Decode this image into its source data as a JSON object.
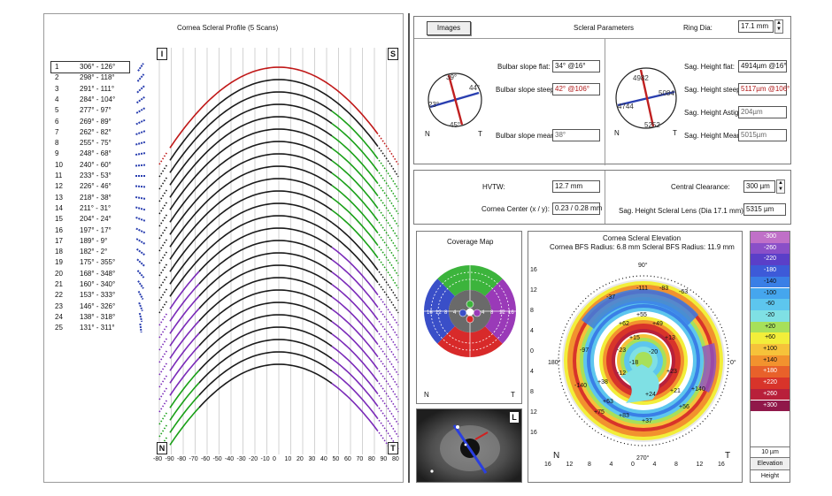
{
  "profile": {
    "title": "Cornea Scleral Profile (5 Scans)",
    "corner_top_left": "I",
    "corner_top_right": "S",
    "corner_bottom_left": "N",
    "corner_bottom_right": "T",
    "x_ticks": [
      "-80",
      "-90",
      "-80",
      "-70",
      "-60",
      "-50",
      "-40",
      "-30",
      "-20",
      "-10",
      "0",
      "10",
      "20",
      "30",
      "40",
      "50",
      "60",
      "70",
      "80",
      "90",
      "80"
    ],
    "scans": [
      {
        "n": "1",
        "angles": "306° - 126°"
      },
      {
        "n": "2",
        "angles": "298° - 118°"
      },
      {
        "n": "3",
        "angles": "291° - 111°"
      },
      {
        "n": "4",
        "angles": "284° - 104°"
      },
      {
        "n": "5",
        "angles": "277° - 97°"
      },
      {
        "n": "6",
        "angles": "269° - 89°"
      },
      {
        "n": "7",
        "angles": "262° - 82°"
      },
      {
        "n": "8",
        "angles": "255° - 75°"
      },
      {
        "n": "9",
        "angles": "248° - 68°"
      },
      {
        "n": "10",
        "angles": "240° - 60°"
      },
      {
        "n": "11",
        "angles": "233° - 53°"
      },
      {
        "n": "12",
        "angles": "226° - 46°"
      },
      {
        "n": "13",
        "angles": "218° - 38°"
      },
      {
        "n": "14",
        "angles": "211° - 31°"
      },
      {
        "n": "15",
        "angles": "204° - 24°"
      },
      {
        "n": "16",
        "angles": "197° - 17°"
      },
      {
        "n": "17",
        "angles": "189° - 9°"
      },
      {
        "n": "18",
        "angles": "182° - 2°"
      },
      {
        "n": "19",
        "angles": "175° - 355°"
      },
      {
        "n": "20",
        "angles": "168° - 348°"
      },
      {
        "n": "21",
        "angles": "160° - 340°"
      },
      {
        "n": "22",
        "angles": "153° - 333°"
      },
      {
        "n": "23",
        "angles": "146° - 326°"
      },
      {
        "n": "24",
        "angles": "138° - 318°"
      },
      {
        "n": "25",
        "angles": "131° - 311°"
      }
    ]
  },
  "scleral": {
    "images_button": "Images",
    "title": "Scleral Parameters",
    "ring_dia_label": "Ring Dia:",
    "ring_dia_value": "17.1 mm",
    "bulbar_flat_label": "Bulbar slope flat:",
    "bulbar_flat_value": "34° @16°",
    "bulbar_steep_label": "Bulbar slope steep:",
    "bulbar_steep_value": "42° @106°",
    "bulbar_mean_label": "Bulbar slope mean:",
    "bulbar_mean_value": "38°",
    "sag_flat_label": "Sag. Height flat:",
    "sag_flat_value": "4914µm @16°",
    "sag_steep_label": "Sag. Height steep:",
    "sag_steep_value": "5117µm @106°",
    "sag_astig_label": "Sag. Height Astig:",
    "sag_astig_value": "204µm",
    "sag_mean_label": "Sag. Height Mean:",
    "sag_mean_value": "5015µm",
    "slope_dial": {
      "top": "39°",
      "right": "44°",
      "left": "23°",
      "bottom": "45°",
      "n": "N",
      "t": "T"
    },
    "sag_dial": {
      "top": "4982",
      "right": "5084",
      "left": "4744",
      "bottom": "5252",
      "n": "N",
      "t": "T"
    }
  },
  "measure": {
    "hvtw_label": "HVTW:",
    "hvtw_value": "12.7 mm",
    "center_label": "Cornea Center (x / y):",
    "center_value": "0.23 / 0.28 mm",
    "clearance_label": "Central Clearance:",
    "clearance_value": "300 µm",
    "sag_lens_label": "Sag. Height Scleral Lens (Dia 17.1 mm):",
    "sag_lens_value": "5315 µm"
  },
  "coverage": {
    "title": "Coverage Map",
    "n": "N",
    "t": "T",
    "labels": [
      "16",
      "12",
      "8",
      "4",
      "4",
      "8",
      "12",
      "16"
    ]
  },
  "eye_image": {
    "corner": "L"
  },
  "elevation": {
    "title": "Cornea Scleral Elevation",
    "subtitle": "Cornea BFS Radius: 6.8 mm    Scleral BFS Radius: 11.9 mm",
    "left_ticks": [
      "16",
      "12",
      "8",
      "4",
      "0",
      "4",
      "8",
      "12",
      "16"
    ],
    "bottom_ticks": [
      "16",
      "12",
      "8",
      "4",
      "0",
      "4",
      "8",
      "12",
      "16"
    ],
    "top_angle": "90°",
    "bottom_angle": "270°",
    "left_angle": "180°",
    "right_angle": "0°",
    "n": "N",
    "t": "T",
    "map_values": [
      "-111",
      "-83",
      "-63",
      "-37",
      "+55",
      "+62",
      "+49",
      "+15",
      "+13",
      "-23",
      "-20",
      "-18",
      "-12",
      "+23",
      "+21",
      "+24",
      "+38",
      "+63",
      "-97",
      "+83",
      "+75",
      "+37",
      "+56",
      "+140",
      "-140"
    ]
  },
  "colorbar": {
    "values": [
      "-300",
      "-260",
      "-220",
      "-180",
      "-140",
      "-100",
      "-60",
      "-20",
      "+20",
      "+60",
      "+100",
      "+140",
      "+180",
      "+220",
      "+260",
      "+300"
    ],
    "colors": [
      "#c070c8",
      "#8a4fc8",
      "#5a3fc8",
      "#3d5ad8",
      "#3a7fe6",
      "#45a6ee",
      "#5dc6ee",
      "#7fe0e4",
      "#a7e05a",
      "#f2ee3a",
      "#f6c23a",
      "#f2922e",
      "#e8612a",
      "#d8342a",
      "#b8203a",
      "#90184a"
    ],
    "step": "10 µm",
    "mode1": "Elevation",
    "mode2": "Height"
  }
}
